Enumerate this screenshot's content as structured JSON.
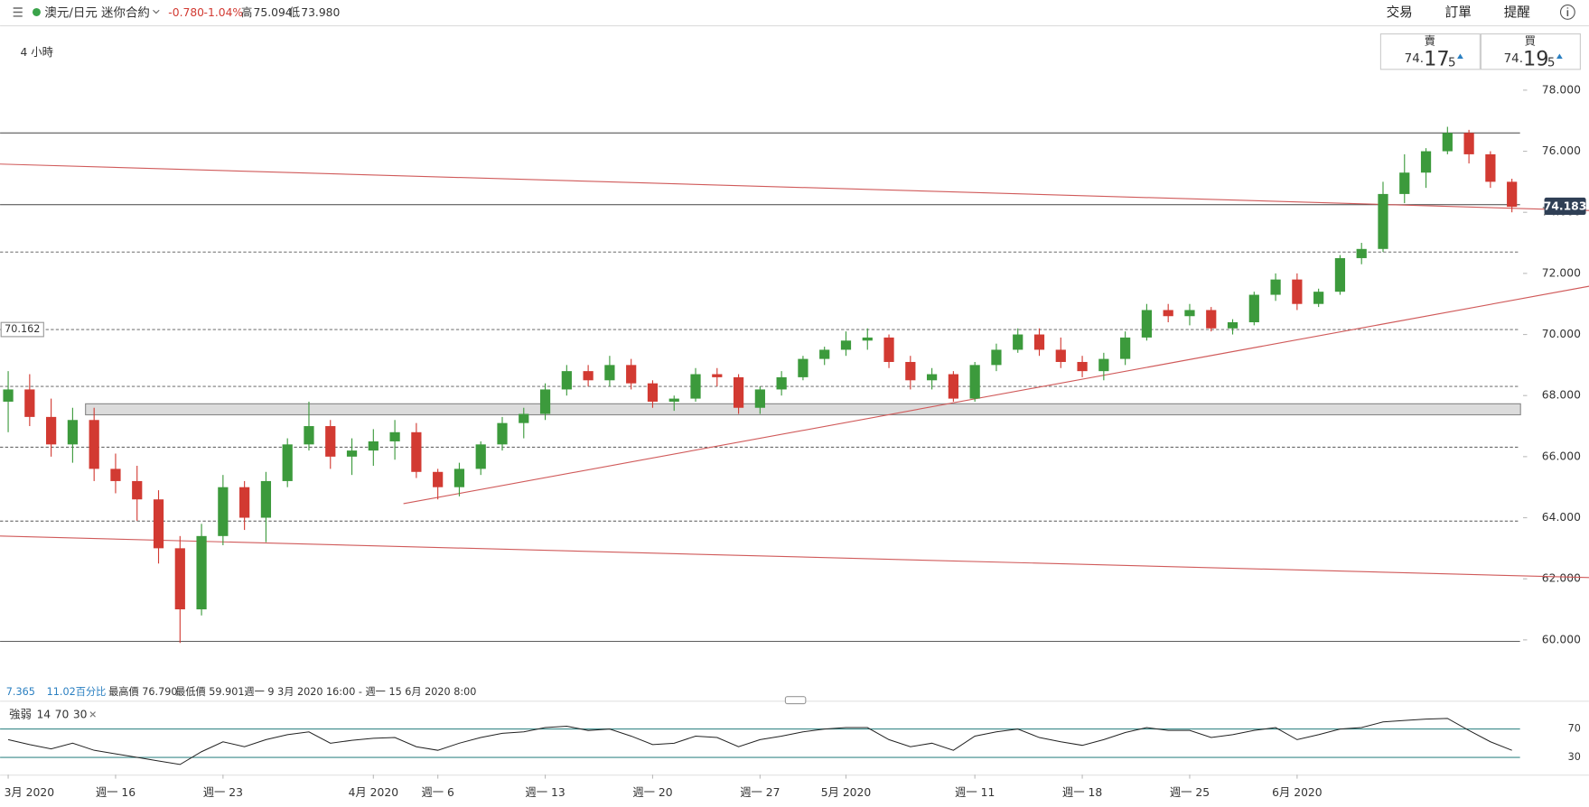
{
  "header": {
    "instrument": "澳元/日元 迷你合約",
    "change": "-0.780",
    "change_pct": "-1.04%",
    "high_label": "高",
    "high": "75.094",
    "low_label": "低",
    "low": "73.980",
    "menu": [
      "交易",
      "訂單",
      "提醒"
    ]
  },
  "timeframe": "4 小時",
  "quotes": {
    "sell": {
      "label": "賣",
      "prefix": "74.",
      "big": "17",
      "small": "5"
    },
    "buy": {
      "label": "買",
      "prefix": "74.",
      "big": "19",
      "small": "5"
    }
  },
  "info": {
    "value": "7.365",
    "percent": "11.02百分比",
    "high": "最高價 76.790",
    "low": "最低價 59.901",
    "range": "週一 9 3月 2020 16:00 - 週一 15 6月 2020 8:00"
  },
  "chart_data": {
    "type": "candlestick",
    "categories": [
      "3月 2020",
      null,
      null,
      null,
      null,
      "週一 16",
      null,
      null,
      null,
      null,
      "週一 23",
      null,
      null,
      null,
      null,
      null,
      null,
      "4月 2020",
      null,
      null,
      "週一 6",
      null,
      null,
      null,
      null,
      "週一 13",
      null,
      null,
      null,
      null,
      "週一 20",
      null,
      null,
      null,
      null,
      "週一 27",
      null,
      null,
      null,
      "5月 2020",
      null,
      null,
      null,
      null,
      null,
      "週一 11",
      null,
      null,
      null,
      null,
      "週一 18",
      null,
      null,
      null,
      null,
      "週一 25",
      null,
      null,
      null,
      null,
      "6月 2020",
      null,
      null,
      null,
      null,
      null,
      null,
      null,
      null,
      null,
      null
    ],
    "open": [
      67.8,
      68.2,
      67.3,
      66.4,
      67.2,
      65.6,
      65.2,
      64.6,
      63.0,
      61.0,
      63.4,
      65.0,
      64.0,
      65.2,
      66.4,
      67.0,
      66.0,
      66.2,
      66.5,
      66.8,
      65.5,
      65.0,
      65.6,
      66.4,
      67.1,
      67.4,
      68.2,
      68.8,
      68.5,
      69.0,
      68.4,
      67.8,
      67.9,
      68.7,
      68.6,
      67.6,
      68.2,
      68.6,
      69.2,
      69.5,
      69.8,
      69.9,
      69.1,
      68.5,
      68.7,
      67.9,
      69.0,
      69.5,
      70.0,
      69.5,
      69.1,
      68.8,
      69.2,
      69.9,
      70.8,
      70.6,
      70.8,
      70.2,
      70.4,
      71.3,
      71.8,
      71.0,
      71.4,
      72.5,
      72.8,
      74.6,
      75.3,
      76.0,
      76.6,
      75.9,
      75.0
    ],
    "high": [
      68.8,
      68.7,
      67.9,
      67.6,
      67.6,
      66.1,
      65.7,
      64.9,
      63.4,
      63.8,
      65.4,
      65.2,
      65.5,
      66.6,
      67.8,
      67.2,
      66.6,
      66.9,
      67.2,
      67.1,
      65.6,
      65.8,
      66.5,
      67.3,
      67.6,
      68.4,
      69.0,
      69.0,
      69.3,
      69.2,
      68.5,
      68.0,
      68.9,
      68.9,
      68.7,
      68.3,
      68.8,
      69.3,
      69.6,
      70.1,
      70.2,
      70.0,
      69.3,
      68.9,
      68.8,
      69.1,
      69.7,
      70.2,
      70.2,
      69.9,
      69.3,
      69.4,
      70.1,
      71.0,
      71.0,
      71.0,
      70.9,
      70.5,
      71.4,
      72.0,
      72.0,
      71.5,
      72.6,
      73.0,
      75.0,
      75.9,
      76.1,
      76.8,
      76.7,
      76.0,
      75.1
    ],
    "low": [
      66.8,
      67.0,
      66.0,
      65.8,
      65.2,
      64.8,
      63.9,
      62.5,
      59.9,
      60.8,
      63.1,
      63.6,
      63.2,
      65.0,
      66.2,
      65.6,
      65.4,
      65.7,
      65.9,
      65.3,
      64.6,
      64.7,
      65.4,
      66.2,
      66.6,
      67.2,
      68.0,
      68.3,
      68.3,
      68.2,
      67.6,
      67.5,
      67.8,
      68.3,
      67.4,
      67.4,
      68.0,
      68.5,
      69.0,
      69.3,
      69.5,
      68.9,
      68.2,
      68.2,
      67.8,
      67.8,
      68.8,
      69.4,
      69.3,
      68.9,
      68.6,
      68.5,
      69.0,
      69.8,
      70.4,
      70.3,
      70.1,
      70.0,
      70.3,
      71.1,
      70.8,
      70.9,
      71.3,
      72.3,
      72.7,
      74.3,
      74.8,
      75.9,
      75.6,
      74.8,
      74.0
    ],
    "close": [
      68.2,
      67.3,
      66.4,
      67.2,
      65.6,
      65.2,
      64.6,
      63.0,
      61.0,
      63.4,
      65.0,
      64.0,
      65.2,
      66.4,
      67.0,
      66.0,
      66.2,
      66.5,
      66.8,
      65.5,
      65.0,
      65.6,
      66.4,
      67.1,
      67.4,
      68.2,
      68.8,
      68.5,
      69.0,
      68.4,
      67.8,
      67.9,
      68.7,
      68.6,
      67.6,
      68.2,
      68.6,
      69.2,
      69.5,
      69.8,
      69.9,
      69.1,
      68.5,
      68.7,
      67.9,
      69.0,
      69.5,
      70.0,
      69.5,
      69.1,
      68.8,
      69.2,
      69.9,
      70.8,
      70.6,
      70.8,
      70.2,
      70.4,
      71.3,
      71.8,
      71.0,
      71.4,
      72.5,
      72.8,
      74.6,
      75.3,
      76.0,
      76.6,
      75.9,
      75.0,
      74.18
    ],
    "up_color": "#3c9a3c",
    "down_color": "#d23a32",
    "ylim": [
      59.07,
      80.09
    ],
    "yticks": [
      {
        "value": 60,
        "label": "60.000"
      },
      {
        "value": 62,
        "label": "62.000"
      },
      {
        "value": 64,
        "label": "64.000"
      },
      {
        "value": 66,
        "label": "66.000"
      },
      {
        "value": 68,
        "label": "68.000"
      },
      {
        "value": 70,
        "label": "70.000"
      },
      {
        "value": 72,
        "label": "72.000"
      },
      {
        "value": 74,
        "label": "74.000"
      },
      {
        "value": 76,
        "label": "76.000"
      },
      {
        "value": 78,
        "label": "78.000"
      }
    ],
    "levels": [
      {
        "value": 76.6,
        "style": "solid"
      },
      {
        "value": 74.25,
        "style": "solid"
      },
      {
        "value": 72.7,
        "style": "dashed"
      },
      {
        "value": 70.162,
        "style": "dashed"
      },
      {
        "value": 68.3,
        "style": "dashed"
      },
      {
        "value": 66.31,
        "style": "dashed"
      },
      {
        "value": 63.89,
        "style": "dashed"
      },
      {
        "value": 59.95,
        "style": "solid"
      }
    ],
    "zone": {
      "x": [
        3.6,
        70.4
      ],
      "y": [
        67.37,
        67.73
      ]
    },
    "trendlines": [
      {
        "x": [
          -0.38,
          73.6
        ],
        "y": [
          75.58,
          74.06
        ]
      },
      {
        "x": [
          -0.38,
          73.6
        ],
        "y": [
          63.4,
          62.04
        ]
      },
      {
        "x": [
          18.4,
          73.6
        ],
        "y": [
          64.46,
          71.58
        ]
      }
    ],
    "trendline_color": "#d05a5a",
    "last_price": 74.183,
    "indicator": {
      "name": "強弱",
      "period": 14,
      "upper": 70,
      "lower": 30,
      "color": "#222222",
      "band_color": "#3b8a8a",
      "ylim": [
        20,
        81.4
      ],
      "yticks": [
        30,
        70
      ],
      "values": [
        55,
        48,
        42,
        50,
        40,
        35,
        30,
        25,
        20,
        38,
        52,
        45,
        55,
        62,
        66,
        50,
        54,
        57,
        58,
        45,
        40,
        50,
        58,
        64,
        66,
        72,
        74,
        68,
        70,
        60,
        48,
        50,
        60,
        58,
        45,
        55,
        60,
        66,
        70,
        72,
        72,
        55,
        45,
        50,
        40,
        60,
        66,
        70,
        58,
        52,
        47,
        55,
        65,
        72,
        68,
        68,
        58,
        62,
        68,
        72,
        55,
        62,
        70,
        72,
        80,
        82,
        84,
        85,
        68,
        52,
        40
      ]
    }
  }
}
